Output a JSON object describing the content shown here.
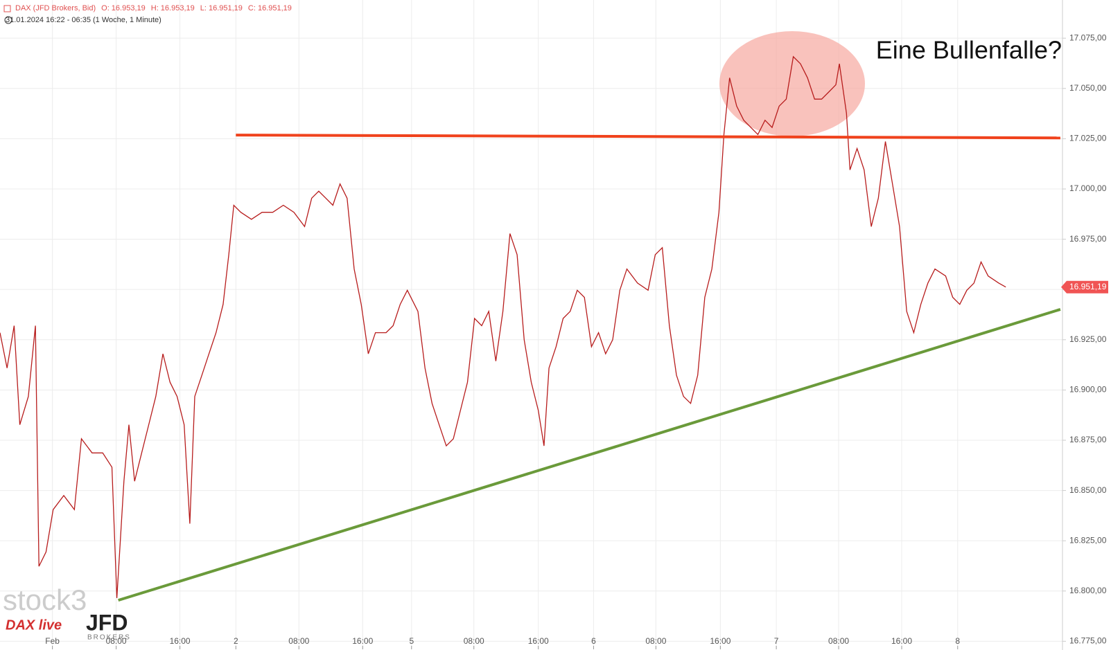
{
  "chart_data": {
    "type": "line",
    "header": [
      "DAX (JFD Brokers, Bid)",
      "O: 16.953,19",
      "H: 16.953,19",
      "L: 16.951,19",
      "C: 16.951,19"
    ],
    "subtitle": "31.01.2024 16:22 - 06:35  (1 Woche, 1 Minute)",
    "annotation": "Eine Bullenfalle?",
    "watermarks": [
      "stock3",
      "DAX live",
      "JFD",
      "BROKERS"
    ],
    "x": [
      0,
      1,
      2,
      2.8,
      4,
      5,
      5.5,
      6.5,
      7.5,
      9,
      10.5,
      11.5,
      13,
      14.5,
      15.8,
      16.5,
      17.5,
      18.2,
      19,
      20,
      21,
      22,
      23,
      24,
      25,
      26,
      26.8,
      27.5,
      28.5,
      29.5,
      30.5,
      31.5,
      32.3,
      33,
      34,
      35.5,
      37,
      38.5,
      40,
      41.5,
      43,
      44,
      45,
      46,
      47,
      48,
      49,
      50,
      51,
      52,
      53,
      54.5,
      55.5,
      56.5,
      57.5,
      59,
      60,
      61,
      62,
      63,
      64,
      65,
      66,
      67,
      68,
      69,
      70,
      71,
      72,
      73,
      74,
      75,
      76,
      76.8,
      77.5,
      78.5,
      79.5,
      80.5,
      81.5,
      82.5,
      83.5,
      84.5,
      85.5,
      86.5,
      87.5,
      88.5,
      90,
      91.5,
      92.5,
      93.5,
      94.5,
      95.5,
      96.5,
      97.5,
      98.5,
      99.5,
      100.5,
      101.5,
      102.2,
      103,
      104,
      105,
      106,
      107,
      108,
      109,
      110,
      111,
      112,
      113,
      114,
      115,
      116,
      117,
      118,
      118.5,
      119.5,
      120,
      121,
      122,
      123,
      124,
      125,
      126,
      127,
      128,
      129,
      130,
      131,
      132,
      133.5,
      134.5,
      135.5,
      136.5,
      137.5,
      138.5,
      139.5,
      141,
      142
    ],
    "series": [
      {
        "name": "DAX",
        "color": "#b71c1c",
        "values": [
          16928.5,
          16910.9,
          16932,
          16882.7,
          16896.8,
          16932,
          16812.3,
          16819.4,
          16840.5,
          16847.5,
          16840.5,
          16875.7,
          16868.7,
          16868.7,
          16861.6,
          16796.5,
          16854.6,
          16882.7,
          16854.6,
          16868.7,
          16882.7,
          16896.8,
          16918,
          16903.9,
          16896.8,
          16882.7,
          16833.5,
          16896.8,
          16907.4,
          16918,
          16928.5,
          16942.6,
          16967.3,
          16991.9,
          16988.4,
          16984.9,
          16988.4,
          16988.4,
          16991.9,
          16988.4,
          16981.3,
          16995.4,
          16998.9,
          16995.4,
          16991.9,
          17002.5,
          16995.4,
          16960.2,
          16942.6,
          16918,
          16928.5,
          16928.5,
          16932,
          16942.6,
          16949.6,
          16939.1,
          16910.9,
          16893.3,
          16882.7,
          16872.2,
          16875.7,
          16889.8,
          16903.9,
          16935.6,
          16932,
          16939.1,
          16914.4,
          16939.1,
          16977.8,
          16967.3,
          16925,
          16903.9,
          16889.8,
          16872.2,
          16910.9,
          16921.5,
          16935.6,
          16939.1,
          16949.6,
          16946.1,
          16921.5,
          16928.5,
          16918,
          16925,
          16949.6,
          16960.2,
          16953.2,
          16949.6,
          16967.3,
          16970.8,
          16932,
          16907.4,
          16896.8,
          16893.3,
          16907.4,
          16946.1,
          16960.2,
          16988.4,
          17027.1,
          17055.3,
          17041.2,
          17034.2,
          17030.6,
          17027.1,
          17034.2,
          17030.6,
          17041.2,
          17044.7,
          17065.8,
          17062.3,
          17055.3,
          17044.7,
          17044.7,
          17048.2,
          17051.8,
          17062.3,
          17037.7,
          17009.5,
          17020.1,
          17009.5,
          16981.3,
          16995.4,
          17023.6,
          17002.5,
          16981.3,
          16939.1,
          16928.5,
          16942.6,
          16953.2,
          16960.2,
          16956.7,
          16946.1,
          16942.6,
          16949.6,
          16953.2,
          16963.7,
          16956.7,
          16953.2,
          16951.2
        ]
      }
    ],
    "last": {
      "value": 16951.19,
      "label": "16.951,19",
      "color": "#f05454"
    },
    "trendlines": [
      {
        "color": "#f0421c",
        "x": [
          33.3,
          149.7
        ],
        "values": [
          17026.8,
          17025.4
        ]
      },
      {
        "color": "#6a9a3a",
        "x": [
          16.7,
          149.7
        ],
        "values": [
          16795.4,
          16940.1
        ]
      }
    ],
    "xlim": [
      0,
      150
    ],
    "ylim": [
      16771,
      17094
    ],
    "xticks": [
      {
        "value": 7.4,
        "label": "Feb"
      },
      {
        "value": 16.4,
        "label": "08:00"
      },
      {
        "value": 25.4,
        "label": "16:00"
      },
      {
        "value": 33.3,
        "label": "2"
      },
      {
        "value": 42.2,
        "label": "08:00"
      },
      {
        "value": 51.2,
        "label": "16:00"
      },
      {
        "value": 58.1,
        "label": "5"
      },
      {
        "value": 66.9,
        "label": "08:00"
      },
      {
        "value": 76,
        "label": "16:00"
      },
      {
        "value": 83.8,
        "label": "6"
      },
      {
        "value": 92.6,
        "label": "08:00"
      },
      {
        "value": 101.7,
        "label": "16:00"
      },
      {
        "value": 109.6,
        "label": "7"
      },
      {
        "value": 118.4,
        "label": "08:00"
      },
      {
        "value": 127.3,
        "label": "16:00"
      },
      {
        "value": 135.2,
        "label": "8"
      }
    ],
    "yticks": [
      {
        "value": 16775,
        "label": "16.775,00"
      },
      {
        "value": 16800,
        "label": "16.800,00"
      },
      {
        "value": 16825,
        "label": "16.825,00"
      },
      {
        "value": 16850,
        "label": "16.850,00"
      },
      {
        "value": 16875,
        "label": "16.875,00"
      },
      {
        "value": 16900,
        "label": "16.900,00"
      },
      {
        "value": 16925,
        "label": "16.925,00"
      },
      {
        "value": 16950,
        "label": "16.950,00"
      },
      {
        "value": 16975,
        "label": "16.975,00"
      },
      {
        "value": 17000,
        "label": "17.000,00"
      },
      {
        "value": 17025,
        "label": "17.025,00"
      },
      {
        "value": 17050,
        "label": "17.050,00"
      },
      {
        "value": 17075,
        "label": "17.075,00"
      }
    ],
    "grid": true
  }
}
